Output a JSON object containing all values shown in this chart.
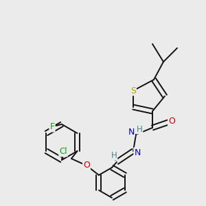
{
  "bg_color": "#ebebeb",
  "atom_colors": {
    "S": "#b8a000",
    "N": "#0000cc",
    "O": "#cc0000",
    "F": "#00aa00",
    "Cl": "#00aa00",
    "H": "#448888",
    "C": "#000000"
  },
  "bond_color": "#111111",
  "lw": 1.4
}
